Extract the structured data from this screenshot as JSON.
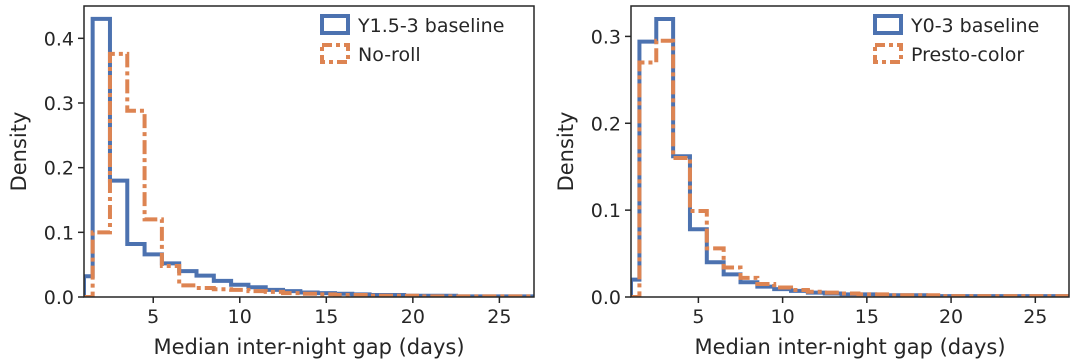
{
  "chart_data": [
    {
      "type": "histogram",
      "xlabel": "Median inter-night gap (days)",
      "ylabel": "Density",
      "xlim": [
        1,
        27
      ],
      "ylim": [
        0,
        0.45
      ],
      "xticks": [
        5,
        10,
        15,
        20,
        25
      ],
      "xtick_labels": [
        "5",
        "10",
        "15",
        "20",
        "25"
      ],
      "yticks": [
        0.0,
        0.1,
        0.2,
        0.3,
        0.4
      ],
      "ytick_labels": [
        "0.0",
        "0.1",
        "0.2",
        "0.3",
        "0.4"
      ],
      "grid": false,
      "legend_position": "top-right",
      "bin_edges": [
        1,
        1.5,
        2.5,
        3.5,
        4.5,
        5.5,
        6.5,
        7.5,
        8.5,
        9.5,
        10.5,
        11.5,
        12.5,
        13.5,
        14.5,
        15.5,
        16.5,
        17.5,
        18.5,
        19.5,
        20.5,
        21.5,
        22.5,
        23.5,
        24.5,
        25.5,
        26.5,
        27
      ],
      "series": [
        {
          "name": "Y1.5-3 baseline",
          "style": "solid",
          "color": "#4c72b0",
          "values": [
            0.032,
            0.43,
            0.18,
            0.082,
            0.066,
            0.052,
            0.04,
            0.033,
            0.025,
            0.019,
            0.015,
            0.011,
            0.009,
            0.007,
            0.006,
            0.005,
            0.004,
            0.003,
            0.003,
            0.002,
            0.002,
            0.002,
            0.001,
            0.001,
            0.001,
            0.001,
            0.001
          ]
        },
        {
          "name": "No-roll",
          "style": "dashed",
          "color": "#dd8452",
          "values": [
            0.0,
            0.1,
            0.376,
            0.288,
            0.12,
            0.048,
            0.018,
            0.014,
            0.012,
            0.011,
            0.009,
            0.008,
            0.006,
            0.005,
            0.004,
            0.003,
            0.003,
            0.002,
            0.002,
            0.002,
            0.001,
            0.001,
            0.001,
            0.001,
            0.001,
            0.001,
            0.001
          ]
        }
      ]
    },
    {
      "type": "histogram",
      "xlabel": "Median inter-night gap (days)",
      "ylabel": "Density",
      "xlim": [
        1,
        27
      ],
      "ylim": [
        0,
        0.335
      ],
      "xticks": [
        5,
        10,
        15,
        20,
        25
      ],
      "xtick_labels": [
        "5",
        "10",
        "15",
        "20",
        "25"
      ],
      "yticks": [
        0.0,
        0.1,
        0.2,
        0.3
      ],
      "ytick_labels": [
        "0.0",
        "0.1",
        "0.2",
        "0.3"
      ],
      "grid": false,
      "legend_position": "top-right",
      "bin_edges": [
        1,
        1.5,
        2.5,
        3.5,
        4.5,
        5.5,
        6.5,
        7.5,
        8.5,
        9.5,
        10.5,
        11.5,
        12.5,
        13.5,
        14.5,
        15.5,
        16.5,
        17.5,
        18.5,
        19.5,
        20.5,
        21.5,
        22.5,
        23.5,
        24.5,
        25.5,
        26.5,
        27
      ],
      "series": [
        {
          "name": "Y0-3 baseline",
          "style": "solid",
          "color": "#4c72b0",
          "values": [
            0.02,
            0.294,
            0.32,
            0.162,
            0.078,
            0.04,
            0.026,
            0.017,
            0.012,
            0.009,
            0.007,
            0.005,
            0.004,
            0.003,
            0.003,
            0.002,
            0.002,
            0.002,
            0.001,
            0.001,
            0.001,
            0.001,
            0.001,
            0.001,
            0.001,
            0.001,
            0.001
          ]
        },
        {
          "name": "Presto-color",
          "style": "dashed",
          "color": "#dd8452",
          "values": [
            0.0,
            0.27,
            0.295,
            0.16,
            0.099,
            0.056,
            0.034,
            0.022,
            0.015,
            0.011,
            0.008,
            0.006,
            0.005,
            0.004,
            0.003,
            0.003,
            0.002,
            0.002,
            0.002,
            0.001,
            0.001,
            0.001,
            0.001,
            0.001,
            0.001,
            0.001,
            0.001
          ]
        }
      ]
    }
  ]
}
